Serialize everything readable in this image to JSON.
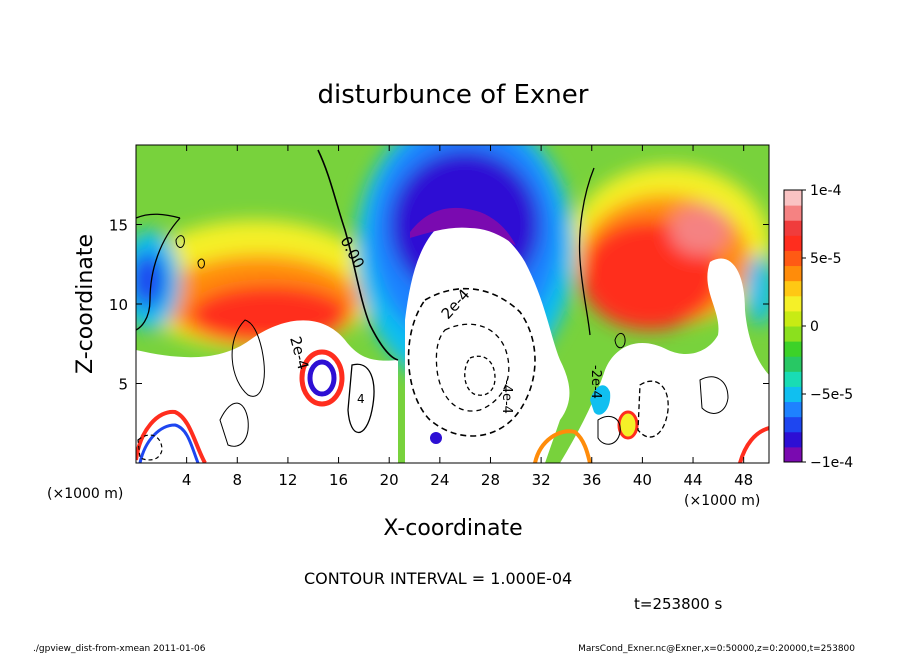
{
  "chart_data": {
    "type": "heatmap",
    "title": "disturbunce of Exner",
    "xlabel": "X-coordinate",
    "ylabel": "Z-coordinate",
    "x_unit_label": "(×1000 m)",
    "y_unit_label": "(×1000 m)",
    "xlim": [
      0,
      50
    ],
    "ylim": [
      0,
      20
    ],
    "x_ticks": [
      4,
      8,
      12,
      16,
      20,
      24,
      28,
      32,
      36,
      40,
      44,
      48
    ],
    "y_ticks": [
      5,
      10,
      15
    ],
    "colorbar": {
      "range": [
        -0.0001,
        0.0001
      ],
      "tick_values": [
        -0.0001,
        -5e-05,
        0,
        5e-05,
        0.0001
      ],
      "tick_labels": [
        "−1e-4",
        "−5e-5",
        "0",
        "5e-5",
        "1e-4"
      ],
      "colors": [
        "#7a0ab0",
        "#2d0fd4",
        "#1e46f0",
        "#1e82ff",
        "#10bff0",
        "#19dcb4",
        "#28c864",
        "#3cd228",
        "#8be01e",
        "#c8eb14",
        "#f5f028",
        "#ffc814",
        "#ff8c0a",
        "#ff5a14",
        "#ff2d1e",
        "#f03c3c",
        "#f58282",
        "#fac3c3"
      ]
    },
    "contour_interval_text": "CONTOUR INTERVAL = 1.000E-04",
    "contour_labels": [
      "0.00",
      "2e-4",
      "2e-4",
      "-4e-4",
      "-2e-4",
      "4"
    ]
  },
  "time_label": "t=253800 s",
  "footer": {
    "left": "./gpview_dist-from-xmean   2011-01-06",
    "right": "MarsCond_Exner.nc@Exner,x=0:50000,z=0:20000,t=253800"
  }
}
